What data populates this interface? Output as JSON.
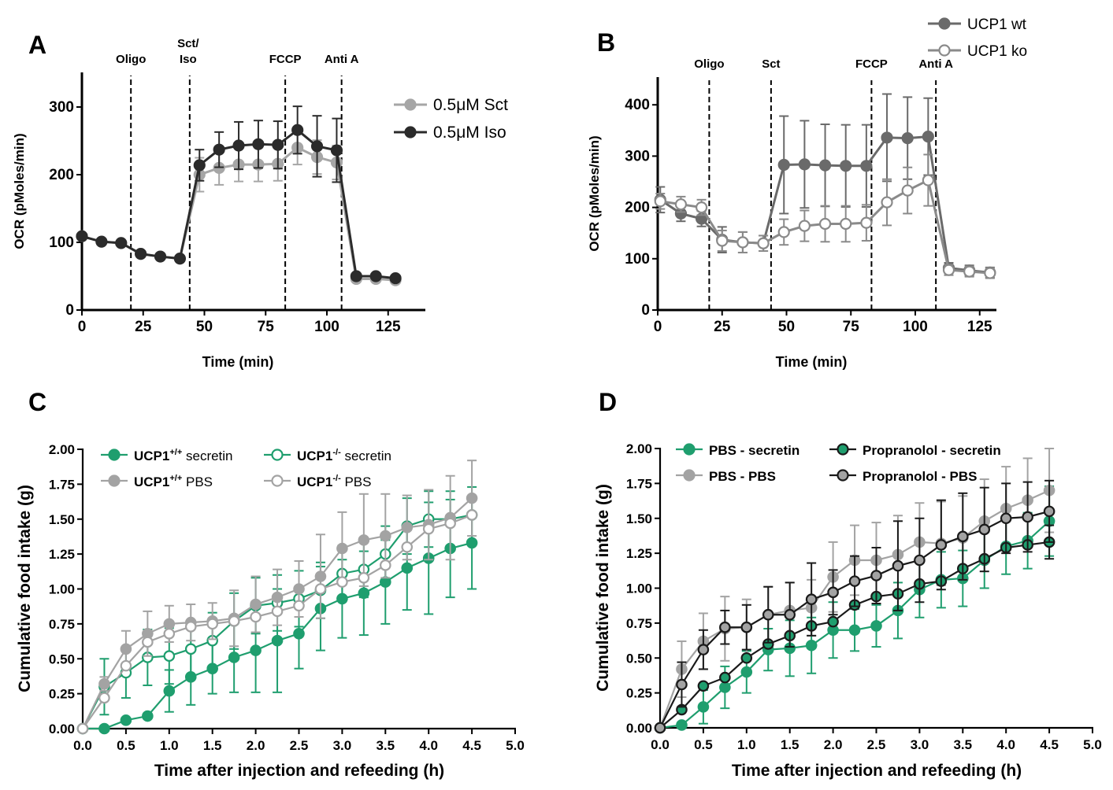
{
  "colors": {
    "A_sct": "#a6a6a6",
    "A_iso": "#2b2b2b",
    "B_wt": "#6a6a6a",
    "B_ko": "#8a8a8a",
    "green": "#1f9e6e",
    "grey": "#a3a3a3",
    "black": "#1a1a1a"
  },
  "chart_data": [
    {
      "id": "A",
      "type": "line",
      "panel_label": "A",
      "xlabel": "Time (min)",
      "ylabel": "OCR (pMoles/min)",
      "xlim": [
        0,
        140
      ],
      "ylim": [
        0,
        350
      ],
      "xticks": [
        0,
        25,
        50,
        75,
        100,
        125
      ],
      "yticks": [
        0,
        100,
        200,
        300
      ],
      "legend_position": "top-right",
      "markers": [
        {
          "x": 20,
          "label": "Oligo"
        },
        {
          "x": 44,
          "label": "Sct/\nIso"
        },
        {
          "x": 83,
          "label": "FCCP"
        },
        {
          "x": 106,
          "label": "Anti A"
        }
      ],
      "x": [
        0,
        8,
        16,
        24,
        32,
        40,
        48,
        56,
        64,
        72,
        80,
        88,
        96,
        104,
        112,
        120,
        128
      ],
      "series": [
        {
          "name": "0.5μM Sct",
          "color": "A_sct",
          "marker": "filled",
          "values": [
            109,
            101,
            99,
            83,
            79,
            76,
            200,
            210,
            215,
            215,
            216,
            240,
            226,
            218,
            46,
            46,
            44
          ],
          "err": [
            0,
            0,
            0,
            0,
            0,
            0,
            25,
            25,
            25,
            25,
            25,
            25,
            25,
            25,
            0,
            0,
            0
          ]
        },
        {
          "name": "0.5μM Iso",
          "color": "A_iso",
          "marker": "filled",
          "values": [
            109,
            101,
            99,
            83,
            79,
            76,
            214,
            237,
            243,
            245,
            244,
            266,
            242,
            236,
            50,
            50,
            47
          ],
          "err": [
            0,
            0,
            0,
            0,
            0,
            0,
            23,
            26,
            35,
            35,
            35,
            35,
            45,
            47,
            0,
            0,
            0
          ]
        }
      ]
    },
    {
      "id": "B",
      "type": "line",
      "panel_label": "B",
      "xlabel": "Time (min)",
      "ylabel": "OCR (pMoles/min)",
      "xlim": [
        0,
        135
      ],
      "ylim": [
        0,
        450
      ],
      "xticks": [
        0,
        25,
        50,
        75,
        100,
        125
      ],
      "yticks": [
        0,
        100,
        200,
        300,
        400
      ],
      "legend_position": "top-right",
      "markers": [
        {
          "x": 20,
          "label": "Oligo"
        },
        {
          "x": 44,
          "label": "Sct"
        },
        {
          "x": 83,
          "label": "FCCP"
        },
        {
          "x": 108,
          "label": "Anti A"
        }
      ],
      "x": [
        1,
        9,
        17,
        25,
        33,
        41,
        49,
        57,
        65,
        73,
        81,
        89,
        97,
        105,
        113,
        121,
        129
      ],
      "series": [
        {
          "name": "UCP1 wt",
          "color": "B_wt",
          "marker": "filled",
          "values": [
            215,
            188,
            178,
            137,
            132,
            130,
            283,
            284,
            282,
            281,
            281,
            336,
            335,
            338,
            82,
            77,
            73
          ],
          "err": [
            25,
            15,
            15,
            25,
            20,
            15,
            95,
            85,
            80,
            80,
            80,
            85,
            80,
            75,
            10,
            10,
            10
          ]
        },
        {
          "name": "UCP1 ko",
          "color": "B_ko",
          "marker": "open",
          "values": [
            212,
            206,
            200,
            135,
            132,
            130,
            152,
            164,
            168,
            168,
            170,
            210,
            233,
            253,
            78,
            75,
            72
          ],
          "err": [
            15,
            15,
            15,
            20,
            20,
            15,
            25,
            30,
            35,
            35,
            35,
            45,
            45,
            50,
            10,
            10,
            10
          ]
        }
      ]
    },
    {
      "id": "C",
      "type": "line",
      "panel_label": "C",
      "xlabel": "Time after injection and refeeding (h)",
      "ylabel": "Cumulative food intake (g)",
      "xlim": [
        0,
        5
      ],
      "ylim": [
        0,
        2
      ],
      "xticks": [
        "0.0",
        "0.5",
        "1.0",
        "1.5",
        "2.0",
        "2.5",
        "3.0",
        "3.5",
        "4.0",
        "4.5",
        "5.0"
      ],
      "yticks": [
        "0.00",
        "0.25",
        "0.50",
        "0.75",
        "1.00",
        "1.25",
        "1.50",
        "1.75",
        "2.00"
      ],
      "legend_position": "top-left",
      "x": [
        0,
        0.25,
        0.5,
        0.75,
        1.0,
        1.25,
        1.5,
        1.75,
        2.0,
        2.25,
        2.5,
        2.75,
        3.0,
        3.25,
        3.5,
        3.75,
        4.0,
        4.25,
        4.5
      ],
      "series": [
        {
          "name": "UCP1",
          "sup": "+/+",
          "suffix": " secretin",
          "color": "green",
          "marker": "filled",
          "values": [
            0,
            0,
            0.06,
            0.09,
            0.27,
            0.37,
            0.43,
            0.51,
            0.56,
            0.63,
            0.68,
            0.86,
            0.93,
            0.97,
            1.05,
            1.15,
            1.22,
            1.29,
            1.33
          ],
          "err": [
            0,
            0,
            0,
            0,
            0.15,
            0.2,
            0.18,
            0.25,
            0.3,
            0.37,
            0.25,
            0.3,
            0.28,
            0.3,
            0.3,
            0.3,
            0.4,
            0.35,
            0.33
          ]
        },
        {
          "name": "UCP1",
          "sup": "-/-",
          "suffix": " secretin",
          "color": "green",
          "marker": "open",
          "values": [
            0,
            0.3,
            0.4,
            0.51,
            0.52,
            0.57,
            0.63,
            0.77,
            0.88,
            0.9,
            0.93,
            0.99,
            1.11,
            1.14,
            1.25,
            1.45,
            1.5,
            1.5,
            1.53
          ],
          "err": [
            0,
            0.2,
            0.18,
            0.2,
            0.2,
            0.2,
            0.2,
            0.2,
            0.2,
            0.2,
            0.2,
            0.2,
            0.2,
            0.2,
            0.2,
            0.2,
            0.2,
            0.2,
            0.2
          ]
        },
        {
          "name": "UCP1",
          "sup": "+/+",
          "suffix": " PBS",
          "color": "grey",
          "marker": "filled",
          "values": [
            0,
            0.32,
            0.57,
            0.68,
            0.75,
            0.76,
            0.77,
            0.79,
            0.89,
            0.94,
            1.0,
            1.09,
            1.29,
            1.35,
            1.38,
            1.44,
            1.46,
            1.51,
            1.65
          ],
          "err": [
            0,
            0.05,
            0.13,
            0.16,
            0.13,
            0.13,
            0.13,
            0.2,
            0.2,
            0.2,
            0.2,
            0.3,
            0.26,
            0.33,
            0.3,
            0.23,
            0.25,
            0.3,
            0.27
          ]
        },
        {
          "name": "UCP1",
          "sup": "-/-",
          "suffix": " PBS",
          "color": "grey",
          "marker": "open",
          "values": [
            0,
            0.22,
            0.45,
            0.62,
            0.68,
            0.73,
            0.75,
            0.77,
            0.8,
            0.84,
            0.88,
            1.0,
            1.05,
            1.08,
            1.17,
            1.3,
            1.43,
            1.47,
            1.53
          ],
          "err": [
            0,
            0,
            0,
            0,
            0,
            0,
            0,
            0,
            0,
            0,
            0,
            0,
            0,
            0,
            0,
            0,
            0,
            0,
            0
          ]
        }
      ]
    },
    {
      "id": "D",
      "type": "line",
      "panel_label": "D",
      "xlabel": "Time after injection and refeeding (h)",
      "ylabel": "Cumulative food intake (g)",
      "xlim": [
        0,
        5
      ],
      "ylim": [
        0,
        2
      ],
      "xticks": [
        "0.0",
        "0.5",
        "1.0",
        "1.5",
        "2.0",
        "2.5",
        "3.0",
        "3.5",
        "4.0",
        "4.5",
        "5.0"
      ],
      "yticks": [
        "0.00",
        "0.25",
        "0.50",
        "0.75",
        "1.00",
        "1.25",
        "1.50",
        "1.75",
        "2.00"
      ],
      "legend_position": "top-left",
      "x": [
        0,
        0.25,
        0.5,
        0.75,
        1.0,
        1.25,
        1.5,
        1.75,
        2.0,
        2.25,
        2.5,
        2.75,
        3.0,
        3.25,
        3.5,
        3.75,
        4.0,
        4.25,
        4.5
      ],
      "series": [
        {
          "name": "PBS - secretin",
          "color": "green",
          "marker": "filled",
          "values": [
            0,
            0.02,
            0.15,
            0.29,
            0.4,
            0.56,
            0.57,
            0.59,
            0.7,
            0.7,
            0.73,
            0.84,
            0.99,
            1.06,
            1.07,
            1.2,
            1.3,
            1.34,
            1.48
          ],
          "err": [
            0,
            0,
            0.12,
            0.15,
            0.15,
            0.15,
            0.2,
            0.2,
            0.2,
            0.15,
            0.15,
            0.2,
            0.2,
            0.2,
            0.2,
            0.2,
            0.2,
            0.2,
            0.25
          ]
        },
        {
          "name": "PBS - PBS",
          "color": "grey",
          "marker": "filled",
          "values": [
            0,
            0.42,
            0.62,
            0.71,
            0.72,
            0.81,
            0.84,
            0.86,
            1.08,
            1.2,
            1.2,
            1.24,
            1.33,
            1.32,
            1.36,
            1.48,
            1.57,
            1.63,
            1.7
          ],
          "err": [
            0,
            0.2,
            0.2,
            0.23,
            0.2,
            0.2,
            0.2,
            0.2,
            0.25,
            0.25,
            0.27,
            0.28,
            0.28,
            0.3,
            0.3,
            0.3,
            0.3,
            0.3,
            0.3
          ]
        },
        {
          "name": "Propranolol - secretin",
          "color": "black",
          "marker": "filled-gray",
          "values": [
            0,
            0.13,
            0.3,
            0.36,
            0.5,
            0.6,
            0.66,
            0.73,
            0.76,
            0.88,
            0.94,
            0.96,
            1.03,
            1.05,
            1.14,
            1.21,
            1.29,
            1.31,
            1.33
          ],
          "err": [
            0,
            0,
            0,
            0,
            0,
            0,
            0,
            0,
            0,
            0,
            0,
            0,
            0,
            0,
            0,
            0,
            0,
            0,
            0.12
          ]
        },
        {
          "name": "Propranolol - PBS",
          "color": "black",
          "marker": "open-gray",
          "values": [
            0,
            0.31,
            0.56,
            0.72,
            0.72,
            0.81,
            0.81,
            0.92,
            0.97,
            1.05,
            1.09,
            1.16,
            1.2,
            1.31,
            1.37,
            1.42,
            1.5,
            1.51,
            1.55
          ],
          "err": [
            0,
            0.16,
            0.14,
            0.12,
            0.16,
            0.2,
            0.23,
            0.26,
            0.16,
            0.18,
            0.2,
            0.32,
            0.3,
            0.32,
            0.31,
            0.3,
            0.25,
            0.25,
            0.22
          ]
        }
      ]
    }
  ]
}
